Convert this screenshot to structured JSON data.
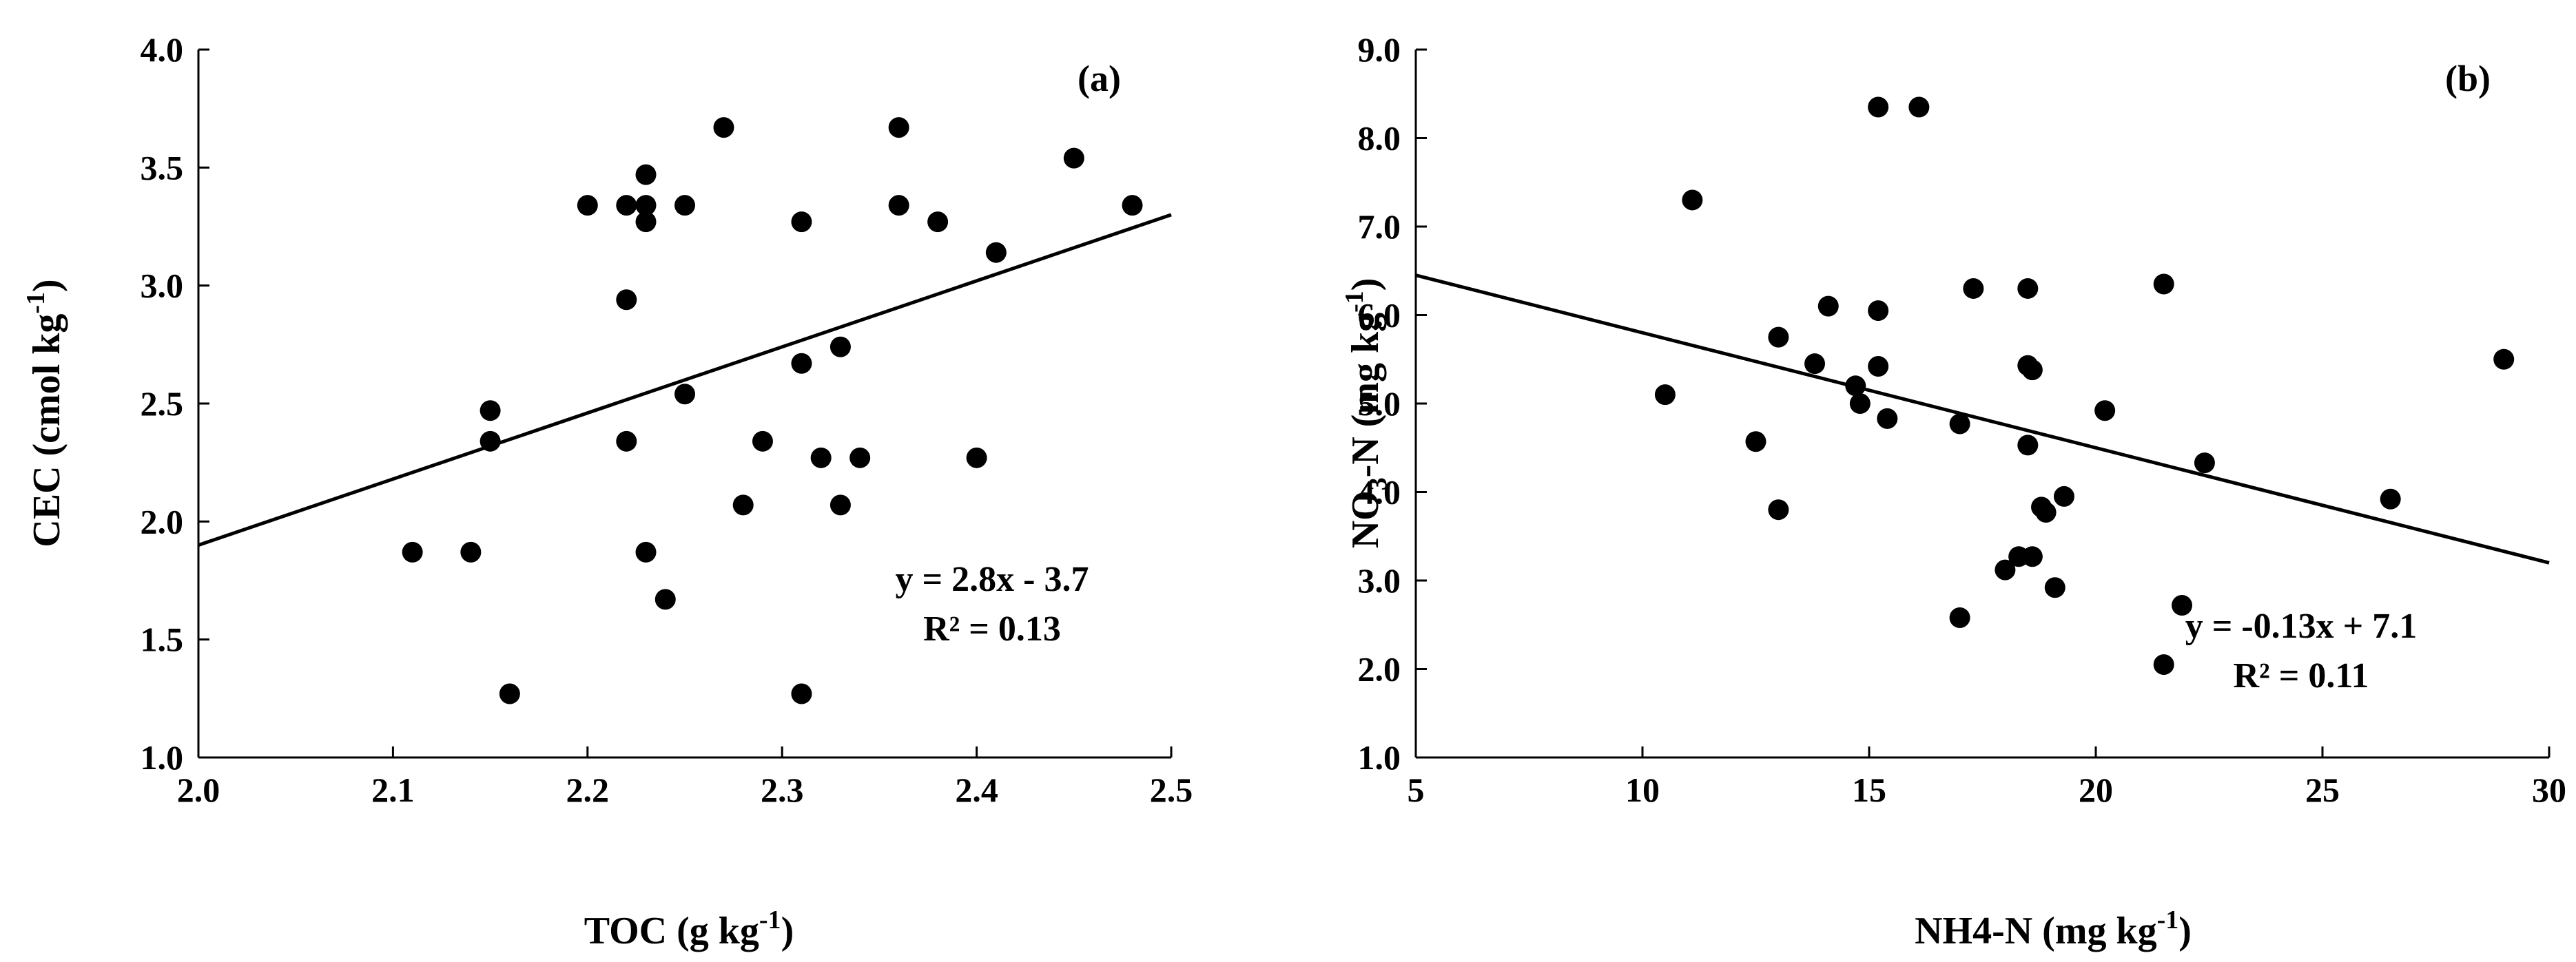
{
  "colors": {
    "marker": "#000000",
    "axis": "#000000",
    "background": "#ffffff"
  },
  "chart_data": [
    {
      "type": "scatter",
      "panel_label": "(a)",
      "xlabel": {
        "main": "TOC (g kg",
        "sup": "-1",
        "tail": ")"
      },
      "ylabel": {
        "main": "CEC (cmol kg",
        "sup": "-1",
        "tail": ")"
      },
      "xlim": [
        2.0,
        2.5
      ],
      "ylim": [
        1.0,
        4.0
      ],
      "xticks": [
        "2.0",
        "2.1",
        "2.2",
        "2.3",
        "2.4",
        "2.5"
      ],
      "yticks": [
        "1.0",
        "1.5",
        "2.0",
        "2.5",
        "3.0",
        "3.5",
        "4.0"
      ],
      "grid": false,
      "points": [
        [
          2.11,
          1.87
        ],
        [
          2.14,
          1.87
        ],
        [
          2.15,
          2.47
        ],
        [
          2.15,
          2.34
        ],
        [
          2.16,
          1.27
        ],
        [
          2.2,
          3.34
        ],
        [
          2.22,
          3.34
        ],
        [
          2.22,
          2.94
        ],
        [
          2.22,
          2.34
        ],
        [
          2.23,
          3.47
        ],
        [
          2.23,
          3.34
        ],
        [
          2.23,
          3.27
        ],
        [
          2.23,
          1.87
        ],
        [
          2.24,
          1.67
        ],
        [
          2.25,
          3.34
        ],
        [
          2.25,
          2.54
        ],
        [
          2.27,
          3.67
        ],
        [
          2.28,
          2.07
        ],
        [
          2.29,
          2.34
        ],
        [
          2.31,
          3.27
        ],
        [
          2.31,
          2.67
        ],
        [
          2.31,
          1.27
        ],
        [
          2.32,
          2.27
        ],
        [
          2.33,
          2.74
        ],
        [
          2.33,
          2.07
        ],
        [
          2.34,
          2.27
        ],
        [
          2.36,
          3.67
        ],
        [
          2.36,
          3.34
        ],
        [
          2.38,
          3.27
        ],
        [
          2.4,
          2.27
        ],
        [
          2.41,
          3.14
        ],
        [
          2.45,
          3.54
        ],
        [
          2.48,
          3.34
        ]
      ],
      "trendline": {
        "slope": 2.8,
        "intercept": -3.7
      },
      "equation": "y = 2.8x - 3.7",
      "r_squared": "R² = 0.13"
    },
    {
      "type": "scatter",
      "panel_label": "(b)",
      "xlabel": {
        "main": "NH4-N (mg kg",
        "sup": "-1",
        "tail": ")"
      },
      "ylabel": {
        "main": "NO",
        "sub": "3",
        "mid": "-N (mg kg",
        "sup": "-1",
        "tail": ")"
      },
      "xlim": [
        5,
        30
      ],
      "ylim": [
        1.0,
        9.0
      ],
      "xticks": [
        "5",
        "10",
        "15",
        "20",
        "25",
        "30"
      ],
      "yticks": [
        "1.0",
        "2.0",
        "3.0",
        "4.0",
        "5.0",
        "6.0",
        "7.0",
        "8.0",
        "9.0"
      ],
      "grid": false,
      "points": [
        [
          10.5,
          5.1
        ],
        [
          11.1,
          7.3
        ],
        [
          12.5,
          4.57
        ],
        [
          13.0,
          5.75
        ],
        [
          13.0,
          3.8
        ],
        [
          13.8,
          5.45
        ],
        [
          14.1,
          6.1
        ],
        [
          14.7,
          5.2
        ],
        [
          14.8,
          5.0
        ],
        [
          15.2,
          8.35
        ],
        [
          15.2,
          6.05
        ],
        [
          15.2,
          5.42
        ],
        [
          15.4,
          4.83
        ],
        [
          16.1,
          8.35
        ],
        [
          17.0,
          4.77
        ],
        [
          17.0,
          2.58
        ],
        [
          17.3,
          6.3
        ],
        [
          18.0,
          3.12
        ],
        [
          18.3,
          3.27
        ],
        [
          18.5,
          6.3
        ],
        [
          18.5,
          5.43
        ],
        [
          18.6,
          5.38
        ],
        [
          18.5,
          4.53
        ],
        [
          18.6,
          3.27
        ],
        [
          18.8,
          3.83
        ],
        [
          18.9,
          3.77
        ],
        [
          19.1,
          2.92
        ],
        [
          19.3,
          3.95
        ],
        [
          20.2,
          4.92
        ],
        [
          21.5,
          6.35
        ],
        [
          21.5,
          2.05
        ],
        [
          21.9,
          2.72
        ],
        [
          22.4,
          4.33
        ],
        [
          26.5,
          3.92
        ],
        [
          29.0,
          5.5
        ]
      ],
      "trendline": {
        "slope": -0.13,
        "intercept": 7.1
      },
      "equation": "y = -0.13x + 7.1",
      "r_squared": "R² = 0.11"
    }
  ]
}
